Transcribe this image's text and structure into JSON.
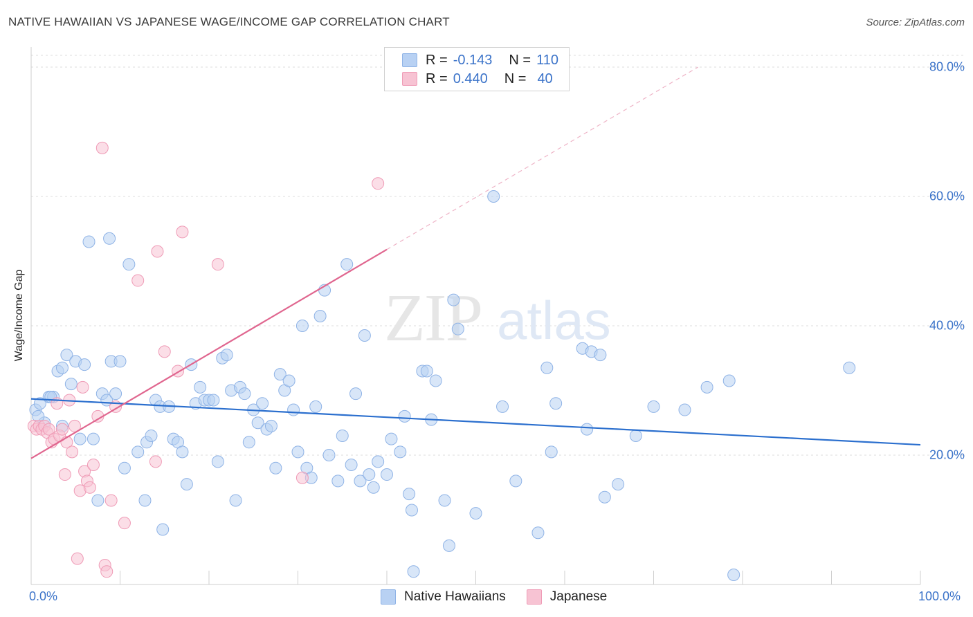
{
  "title": "NATIVE HAWAIIAN VS JAPANESE WAGE/INCOME GAP CORRELATION CHART",
  "source": "Source: ZipAtlas.com",
  "watermark": {
    "zip": "ZIP",
    "atlas": "atlas"
  },
  "colors": {
    "blue_fill": "#b8d1f3",
    "blue_stroke": "#8fb3e6",
    "blue_line": "#2b6fce",
    "pink_fill": "#f7c3d3",
    "pink_stroke": "#ef9bb6",
    "pink_line": "#e0668f",
    "tick_text": "#3b73c9",
    "grid": "#dcdcdc"
  },
  "legend": {
    "rows": [
      {
        "r_label": "R =",
        "r_value": "-0.143",
        "n_label": "N =",
        "n_value": "110"
      },
      {
        "r_label": "R =",
        "r_value": "0.440",
        "n_label": "N =",
        "n_value": "40"
      }
    ]
  },
  "bottom_legend": {
    "series1": "Native Hawaiians",
    "series2": "Japanese"
  },
  "chart_data": {
    "type": "scatter",
    "title": "NATIVE HAWAIIAN VS JAPANESE WAGE/INCOME GAP CORRELATION CHART",
    "xlabel": "",
    "ylabel": "Wage/Income Gap",
    "xlim": [
      0,
      100
    ],
    "ylim": [
      0,
      80
    ],
    "x_tick_labels": [
      "0.0%",
      "100.0%"
    ],
    "y_ticks": [
      20,
      40,
      60,
      80
    ],
    "y_tick_labels": [
      "20.0%",
      "40.0%",
      "60.0%",
      "80.0%"
    ],
    "grid": true,
    "series": [
      {
        "name": "Native Hawaiians",
        "r": -0.143,
        "n": 110,
        "trend": {
          "x0": 0,
          "y0": 28.7,
          "x1": 100,
          "y1": 21.6
        },
        "points": [
          [
            0.5,
            27
          ],
          [
            1,
            28
          ],
          [
            1.5,
            25
          ],
          [
            2,
            29
          ],
          [
            2.5,
            29
          ],
          [
            3,
            33
          ],
          [
            3.5,
            33.5
          ],
          [
            4,
            35.5
          ],
          [
            4.5,
            31
          ],
          [
            5,
            34.5
          ],
          [
            5.5,
            22.5
          ],
          [
            6,
            34
          ],
          [
            6.5,
            53
          ],
          [
            7,
            22.5
          ],
          [
            7.5,
            13
          ],
          [
            8,
            29.5
          ],
          [
            8.5,
            28.5
          ],
          [
            8.8,
            53.5
          ],
          [
            9,
            34.5
          ],
          [
            9.5,
            29.5
          ],
          [
            10,
            34.5
          ],
          [
            10.5,
            18
          ],
          [
            11,
            49.5
          ],
          [
            12,
            20.5
          ],
          [
            12.8,
            13
          ],
          [
            13,
            22
          ],
          [
            13.5,
            23
          ],
          [
            14,
            28.5
          ],
          [
            14.5,
            27.5
          ],
          [
            14.8,
            8.5
          ],
          [
            15.5,
            27.5
          ],
          [
            16,
            22.5
          ],
          [
            16.5,
            22
          ],
          [
            17,
            20.5
          ],
          [
            17.5,
            15.5
          ],
          [
            18,
            34
          ],
          [
            18.5,
            28
          ],
          [
            19,
            30.5
          ],
          [
            19.5,
            28.5
          ],
          [
            20,
            28.5
          ],
          [
            20.5,
            28.5
          ],
          [
            21,
            19
          ],
          [
            21.5,
            35
          ],
          [
            22,
            35.5
          ],
          [
            22.5,
            30
          ],
          [
            23,
            13
          ],
          [
            23.5,
            30.5
          ],
          [
            24,
            29.5
          ],
          [
            24.5,
            22
          ],
          [
            25,
            27
          ],
          [
            25.5,
            25
          ],
          [
            26,
            28
          ],
          [
            26.5,
            24
          ],
          [
            27,
            24.5
          ],
          [
            27.5,
            18
          ],
          [
            28,
            32.5
          ],
          [
            28.5,
            30
          ],
          [
            29,
            31.5
          ],
          [
            29.5,
            27
          ],
          [
            30,
            20.5
          ],
          [
            30.5,
            40
          ],
          [
            31,
            18
          ],
          [
            31.5,
            16.5
          ],
          [
            32,
            27.5
          ],
          [
            32.5,
            41.5
          ],
          [
            33,
            45.5
          ],
          [
            33.5,
            20
          ],
          [
            34.5,
            16
          ],
          [
            35,
            23
          ],
          [
            35.5,
            49.5
          ],
          [
            36,
            18.5
          ],
          [
            36.5,
            29.5
          ],
          [
            37,
            16
          ],
          [
            37.5,
            38.5
          ],
          [
            38,
            17
          ],
          [
            38.5,
            15
          ],
          [
            39,
            19
          ],
          [
            40,
            17
          ],
          [
            40.5,
            22.5
          ],
          [
            41.5,
            20.5
          ],
          [
            42,
            26
          ],
          [
            42.5,
            14
          ],
          [
            42.8,
            11.5
          ],
          [
            43,
            2
          ],
          [
            44,
            33
          ],
          [
            44.5,
            33
          ],
          [
            45,
            25.5
          ],
          [
            45.5,
            31.5
          ],
          [
            46.5,
            13
          ],
          [
            47,
            6
          ],
          [
            47.5,
            44
          ],
          [
            48,
            39.5
          ],
          [
            50,
            11
          ],
          [
            52,
            60
          ],
          [
            53,
            27.5
          ],
          [
            54.5,
            16
          ],
          [
            57,
            8
          ],
          [
            58,
            33.5
          ],
          [
            58.5,
            20.5
          ],
          [
            59,
            28
          ],
          [
            62,
            36.5
          ],
          [
            62.5,
            24
          ],
          [
            63,
            36
          ],
          [
            64,
            35.5
          ],
          [
            64.5,
            13.5
          ],
          [
            66,
            15.5
          ],
          [
            68,
            23
          ],
          [
            70,
            27.5
          ],
          [
            73.5,
            27
          ],
          [
            76,
            30.5
          ],
          [
            78.5,
            31.5
          ],
          [
            79,
            1.5
          ],
          [
            92,
            33.5
          ],
          [
            2.2,
            29
          ],
          [
            3.5,
            24.5
          ],
          [
            0.8,
            26
          ]
        ]
      },
      {
        "name": "Japanese",
        "r": 0.44,
        "n": 40,
        "trend": {
          "x0": 0,
          "y0": 19.5,
          "x1": 40,
          "y1": 51.8
        },
        "trend_dashed": {
          "x0": 40,
          "y0": 51.8,
          "x1": 75,
          "y1": 80
        },
        "points": [
          [
            0.3,
            24.5
          ],
          [
            0.6,
            24
          ],
          [
            0.9,
            24.5
          ],
          [
            1.2,
            24
          ],
          [
            1.5,
            24.5
          ],
          [
            1.8,
            23.5
          ],
          [
            2,
            24
          ],
          [
            2.3,
            22
          ],
          [
            2.6,
            22.5
          ],
          [
            2.9,
            28
          ],
          [
            3.2,
            23
          ],
          [
            3.5,
            24
          ],
          [
            3.8,
            17
          ],
          [
            4,
            22
          ],
          [
            4.3,
            28.5
          ],
          [
            4.6,
            20.5
          ],
          [
            4.9,
            24.5
          ],
          [
            5.2,
            4
          ],
          [
            5.5,
            14.5
          ],
          [
            5.8,
            30.5
          ],
          [
            6,
            17.5
          ],
          [
            6.3,
            16
          ],
          [
            6.6,
            15
          ],
          [
            7,
            18.5
          ],
          [
            7.5,
            26
          ],
          [
            8,
            67.5
          ],
          [
            8.3,
            3
          ],
          [
            8.5,
            2
          ],
          [
            9,
            13
          ],
          [
            9.5,
            27.5
          ],
          [
            10.5,
            9.5
          ],
          [
            12,
            47
          ],
          [
            14,
            19
          ],
          [
            14.2,
            51.5
          ],
          [
            15,
            36
          ],
          [
            16.5,
            33
          ],
          [
            17,
            54.5
          ],
          [
            21,
            49.5
          ],
          [
            30.5,
            16.5
          ],
          [
            39,
            62
          ]
        ]
      }
    ]
  }
}
